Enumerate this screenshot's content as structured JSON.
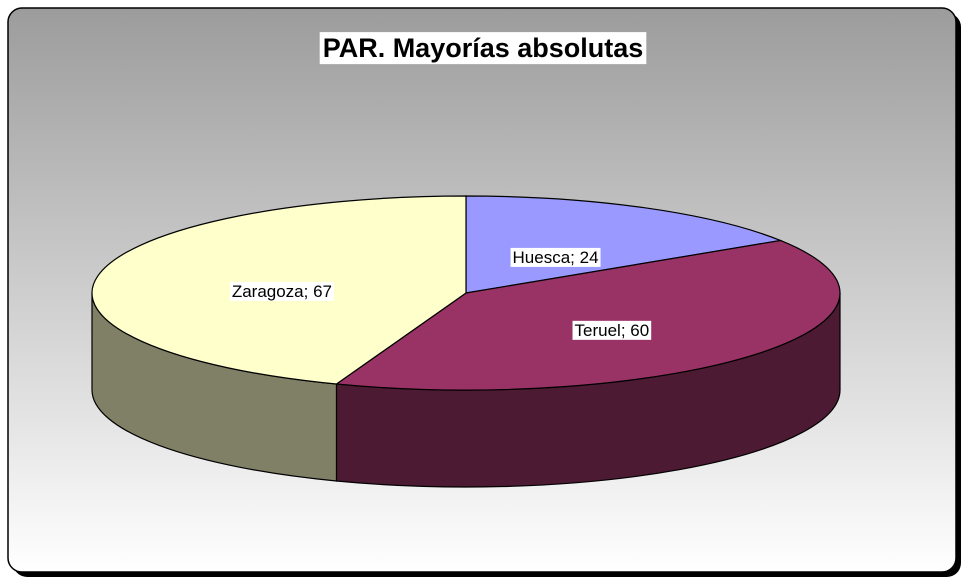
{
  "chart_data": {
    "type": "pie3d",
    "title": "PAR. Mayorías absolutas",
    "categories": [
      "Huesca",
      "Teruel",
      "Zaragoza"
    ],
    "values": [
      24,
      60,
      67
    ],
    "value_labels": [
      "Huesca; 24",
      "Teruel; 60",
      "Zaragoza; 67"
    ],
    "colors": [
      "#9999ff",
      "#993366",
      "#ffffcc"
    ]
  }
}
